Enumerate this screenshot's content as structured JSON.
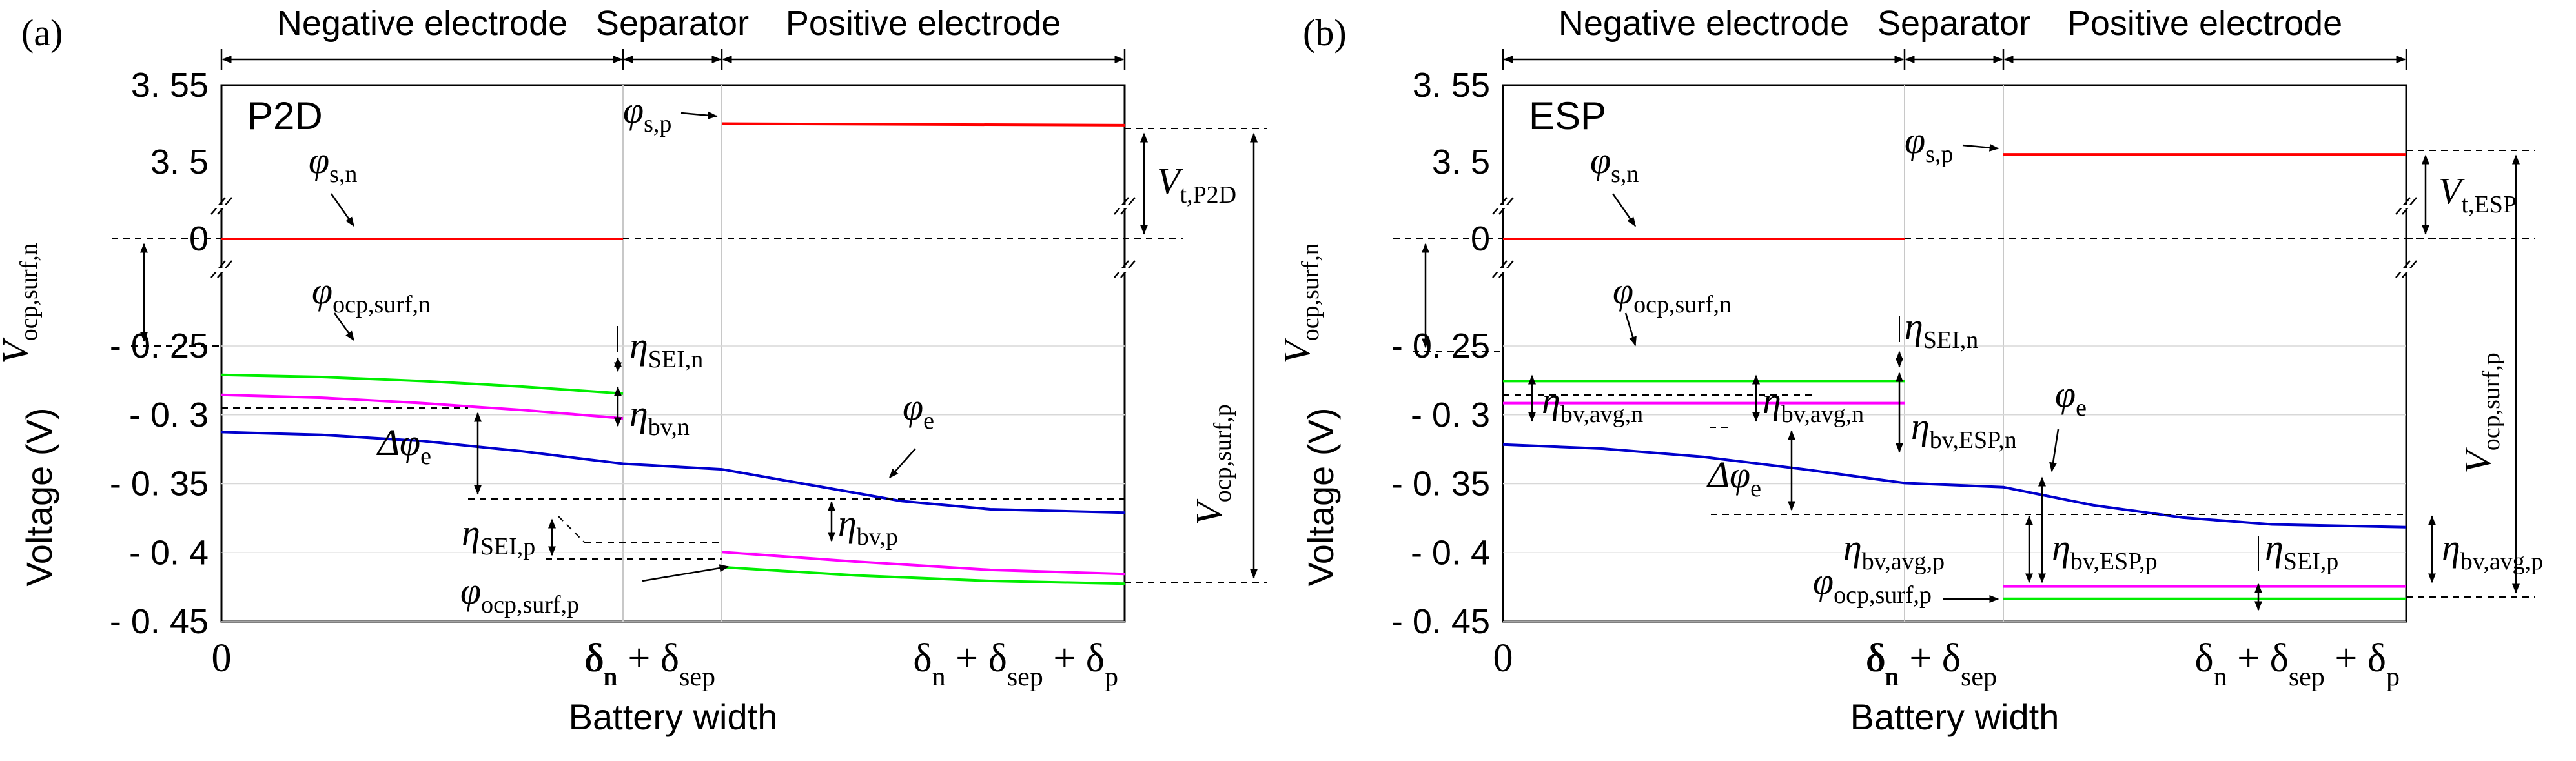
{
  "chart_data": [
    {
      "panel": "(a)",
      "model": "P2D",
      "type": "line",
      "xlabel": "Battery width",
      "ylabel": "Voltage (V)",
      "regions": [
        "Negative electrode",
        "Separator",
        "Positive electrode"
      ],
      "x_ticks": [
        {
          "x": 0,
          "label": "0"
        },
        {
          "x": 1.0,
          "label": "δn"
        },
        {
          "x": 1.1,
          "label": "δn + δsep"
        },
        {
          "x": 2.0,
          "label": "δn + δsep + δp"
        }
      ],
      "y_ticks_upper": [
        3.55,
        3.5
      ],
      "y_ticks_middle": [
        0
      ],
      "y_ticks_lower": [
        -0.25,
        -0.3,
        -0.35,
        -0.4,
        -0.45
      ],
      "series": [
        {
          "name": "φs,n",
          "color": "#ff0000",
          "x": [
            0,
            1.0
          ],
          "y": [
            0,
            0
          ]
        },
        {
          "name": "φs,p",
          "color": "#ff0000",
          "x": [
            1.1,
            2.0
          ],
          "y": [
            3.525,
            3.524
          ]
        },
        {
          "name": "φocp,surf,n",
          "color": "#00ee00",
          "x": [
            0,
            0.25,
            0.5,
            0.75,
            1.0
          ],
          "y": [
            -0.271,
            -0.2725,
            -0.2755,
            -0.2795,
            -0.2845
          ]
        },
        {
          "name": "",
          "color": "#ff00ff",
          "x": [
            0,
            0.25,
            0.5,
            0.75,
            1.0
          ],
          "y": [
            -0.2855,
            -0.2875,
            -0.2915,
            -0.2965,
            -0.3025
          ]
        },
        {
          "name": "φe",
          "color": "#0000cc",
          "x": [
            0,
            0.25,
            0.5,
            0.75,
            1.0,
            1.1,
            1.3,
            1.5,
            1.7,
            2.0
          ],
          "y": [
            -0.3125,
            -0.3145,
            -0.319,
            -0.3265,
            -0.3355,
            -0.3395,
            -0.351,
            -0.3625,
            -0.3685,
            -0.371
          ]
        },
        {
          "name": "",
          "color": "#ff00ff",
          "x": [
            1.1,
            1.4,
            1.7,
            2.0
          ],
          "y": [
            -0.3995,
            -0.4065,
            -0.4125,
            -0.4155
          ]
        },
        {
          "name": "φocp,surf,p",
          "color": "#00ee00",
          "x": [
            1.1,
            1.4,
            1.7,
            2.0
          ],
          "y": [
            -0.4105,
            -0.4165,
            -0.4205,
            -0.4225
          ]
        }
      ],
      "annotations": {
        "phi_s_n": "φs,n",
        "phi_s_p": "φs,p",
        "phi_ocp_n": "φocp,surf,n",
        "phi_ocp_p": "φocp,surf,p",
        "phi_e": "φe",
        "delta_phi_e": "Δφe",
        "eta_sei_n": "ηSEI,n",
        "eta_bv_n": "ηbv,n",
        "eta_sei_p": "ηSEI,p",
        "eta_bv_p": "ηbv,p",
        "v_t": "Vt,P2D",
        "v_ocp_n": "Vocp,surf,n",
        "v_ocp_p": "Vocp,surf,p"
      }
    },
    {
      "panel": "(b)",
      "model": "ESP",
      "type": "line",
      "xlabel": "Battery width",
      "ylabel": "Voltage (V)",
      "regions": [
        "Negative electrode",
        "Separator",
        "Positive electrode"
      ],
      "x_ticks": [
        {
          "x": 0,
          "label": "0"
        },
        {
          "x": 1.0,
          "label": "δn"
        },
        {
          "x": 1.1,
          "label": "δn + δsep"
        },
        {
          "x": 2.0,
          "label": "δn + δsep + δp"
        }
      ],
      "y_ticks_upper": [
        3.55,
        3.5
      ],
      "y_ticks_middle": [
        0
      ],
      "y_ticks_lower": [
        -0.25,
        -0.3,
        -0.35,
        -0.4,
        -0.45
      ],
      "series": [
        {
          "name": "φs,n",
          "color": "#ff0000",
          "x": [
            0,
            1.0
          ],
          "y": [
            0,
            0
          ]
        },
        {
          "name": "φs,p",
          "color": "#ff0000",
          "x": [
            1.1,
            2.0
          ],
          "y": [
            3.505,
            3.505
          ]
        },
        {
          "name": "φocp,surf,n",
          "color": "#00ee00",
          "x": [
            0,
            1.0
          ],
          "y": [
            -0.2755,
            -0.2755
          ]
        },
        {
          "name": "",
          "color": "#ff00ff",
          "x": [
            0,
            1.0
          ],
          "y": [
            -0.2915,
            -0.2915
          ]
        },
        {
          "name": "φe",
          "color": "#0000cc",
          "x": [
            0,
            0.25,
            0.5,
            0.75,
            1.0,
            1.1,
            1.3,
            1.5,
            1.7,
            2.0
          ],
          "y": [
            -0.3215,
            -0.3245,
            -0.3305,
            -0.3395,
            -0.3495,
            -0.3525,
            -0.3655,
            -0.3745,
            -0.3795,
            -0.3815
          ]
        },
        {
          "name": "",
          "color": "#ff00ff",
          "x": [
            1.1,
            2.0
          ],
          "y": [
            -0.4245,
            -0.4245
          ]
        },
        {
          "name": "φocp,surf,p",
          "color": "#00ee00",
          "x": [
            1.1,
            2.0
          ],
          "y": [
            -0.4335,
            -0.4335
          ]
        }
      ],
      "annotations": {
        "phi_s_n": "φs,n",
        "phi_s_p": "φs,p",
        "phi_ocp_n": "φocp,surf,n",
        "phi_ocp_p": "φocp,surf,p",
        "phi_e": "φe",
        "delta_phi_e": "Δφe",
        "eta_sei_n": "ηSEI,n",
        "eta_bv_avg_n": "ηbv,avg,n",
        "eta_bv_esp_n": "ηbv,ESP,n",
        "eta_bv_avg_p": "ηbv,avg,p",
        "eta_bv_esp_p": "ηbv,ESP,p",
        "eta_sei_p": "ηSEI,p",
        "v_t": "Vt,ESP",
        "v_ocp_n": "Vocp,surf,n",
        "v_ocp_p": "Vocp,surf,p"
      }
    }
  ]
}
